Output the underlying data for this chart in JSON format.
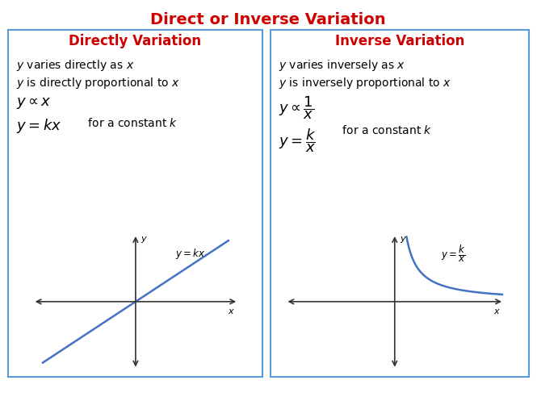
{
  "title": "Direct or Inverse Variation",
  "title_color": "#cc0000",
  "title_fontsize": 14,
  "left_panel_title": "Directly Variation",
  "right_panel_title": "Inverse Variation",
  "panel_title_color": "#cc0000",
  "panel_title_fontsize": 12,
  "bg_color": "#ffffff",
  "panel_border_color": "#5b9bd5",
  "text_color": "#000000",
  "curve_color": "#4472c4",
  "axis_color": "#333333",
  "text_fontsize": 10,
  "math_fontsize": 13,
  "graph_label_fontsize": 9
}
